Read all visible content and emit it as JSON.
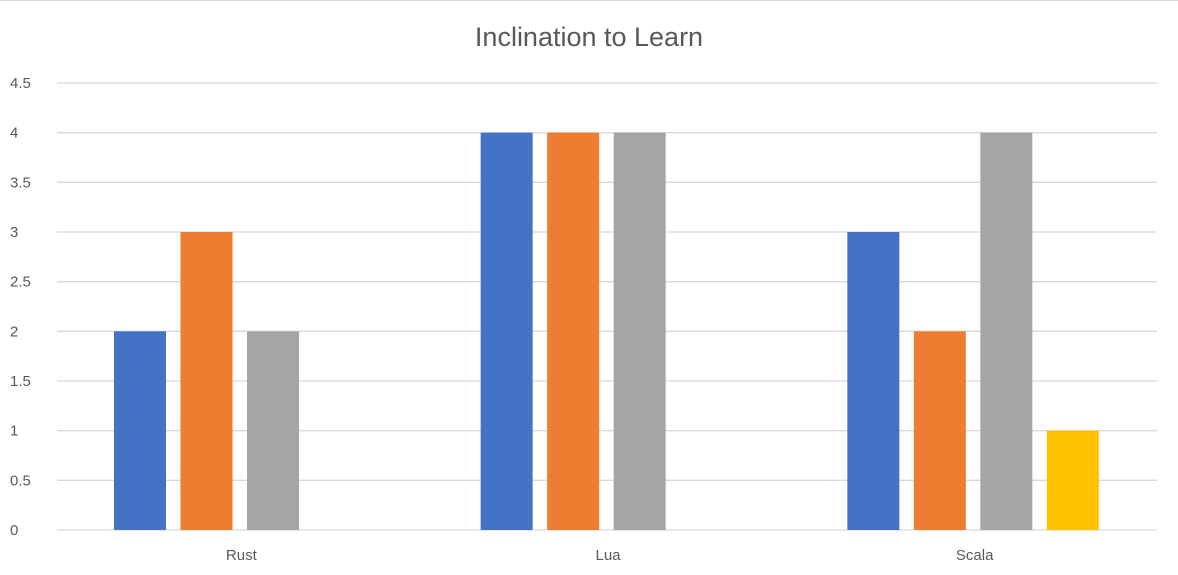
{
  "chart_data": {
    "type": "bar",
    "title": "Inclination to Learn",
    "xlabel": "",
    "ylabel": "",
    "categories": [
      "Rust",
      "Lua",
      "Scala"
    ],
    "series": [
      {
        "values": [
          2,
          4,
          3
        ],
        "color": "#4472c4"
      },
      {
        "values": [
          3,
          4,
          2
        ],
        "color": "#ed7d31"
      },
      {
        "values": [
          2,
          4,
          4
        ],
        "color": "#a5a5a5"
      },
      {
        "values": [
          null,
          null,
          1
        ],
        "color": "#ffc000"
      }
    ],
    "ylim": [
      0,
      4.5
    ],
    "yticks": [
      "0",
      "0.5",
      "1",
      "1.5",
      "2",
      "2.5",
      "3",
      "3.5",
      "4",
      "4.5"
    ],
    "grid": true,
    "legend": "none"
  }
}
